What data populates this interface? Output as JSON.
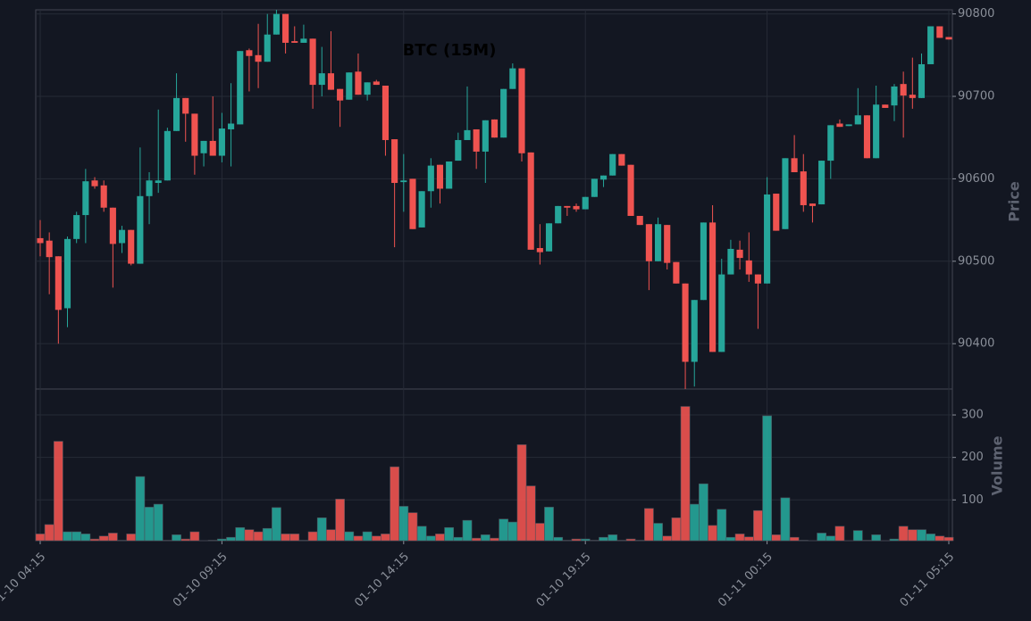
{
  "chart_data": {
    "type": "candlestick",
    "title": "BTC (15M)",
    "categories": [
      "01-10 04:15",
      null,
      null,
      null,
      null,
      null,
      null,
      null,
      null,
      null,
      null,
      null,
      null,
      null,
      null,
      null,
      null,
      null,
      null,
      null,
      "01-10 09:15",
      null,
      null,
      null,
      null,
      null,
      null,
      null,
      null,
      null,
      null,
      null,
      null,
      null,
      null,
      null,
      null,
      null,
      null,
      null,
      "01-10 14:15",
      null,
      null,
      null,
      null,
      null,
      null,
      null,
      null,
      null,
      null,
      null,
      null,
      null,
      null,
      null,
      null,
      null,
      null,
      null,
      "01-10 19:15",
      null,
      null,
      null,
      null,
      null,
      null,
      null,
      null,
      null,
      null,
      null,
      null,
      null,
      null,
      null,
      null,
      null,
      null,
      null,
      "01-11 00:15",
      null,
      null,
      null,
      null,
      null,
      null,
      null,
      null,
      null,
      null,
      null,
      null,
      null,
      null,
      null,
      null,
      null,
      null,
      null,
      "01-11 05:15"
    ],
    "open": [
      90528,
      90525,
      90506,
      90443,
      90527,
      90556,
      90598,
      90592,
      90565,
      90522,
      90538,
      90497,
      90579,
      90595,
      90598,
      90658,
      90698,
      90679,
      90631,
      90646,
      90628,
      90660,
      90666,
      90756,
      90750,
      90742,
      90775,
      90800,
      90767,
      90765,
      90770,
      90714,
      90728,
      90709,
      90696,
      90730,
      90702,
      90718,
      90713,
      90648,
      90596,
      90600,
      90541,
      90585,
      90617,
      90588,
      90622,
      90647,
      90660,
      90633,
      90672,
      90650,
      90709,
      90734,
      90632,
      90516,
      90512,
      90546,
      90567,
      90567,
      90563,
      90578,
      90599,
      90604,
      90630,
      90617,
      90555,
      90545,
      90500,
      90544,
      90499,
      90473,
      90378,
      90453,
      90547,
      90390,
      90484,
      90514,
      90501,
      90484,
      90473,
      90582,
      90539,
      90625,
      90609,
      90570,
      90569,
      90622,
      90667,
      90664,
      90666,
      90677,
      90625,
      90690,
      90689,
      90715,
      90702,
      90698,
      90739,
      90785,
      90772
    ],
    "high": [
      90550,
      90535,
      90506,
      90530,
      90560,
      90612,
      90602,
      90598,
      90565,
      90543,
      90538,
      90638,
      90608,
      90684,
      90662,
      90728,
      90698,
      90679,
      90646,
      90700,
      90680,
      90716,
      90755,
      90758,
      90788,
      90800,
      90805,
      90800,
      90785,
      90787,
      90770,
      90760,
      90779,
      90709,
      90729,
      90752,
      90717,
      90720,
      90713,
      90648,
      90630,
      90600,
      90585,
      90625,
      90617,
      90621,
      90656,
      90712,
      90660,
      90671,
      90672,
      90709,
      90740,
      90734,
      90632,
      90545,
      90546,
      90567,
      90567,
      90570,
      90578,
      90600,
      90604,
      90630,
      90630,
      90617,
      90555,
      90545,
      90553,
      90544,
      90499,
      90473,
      90453,
      90547,
      90568,
      90503,
      90526,
      90525,
      90535,
      90484,
      90602,
      90582,
      90625,
      90653,
      90630,
      90570,
      90622,
      90665,
      90672,
      90666,
      90710,
      90677,
      90713,
      90690,
      90715,
      90730,
      90747,
      90752,
      90785,
      90785,
      90772
    ],
    "low": [
      90506,
      90460,
      90400,
      90420,
      90522,
      90522,
      90588,
      90560,
      90468,
      90510,
      90495,
      90497,
      90545,
      90583,
      90598,
      90658,
      90645,
      90605,
      90615,
      90628,
      90620,
      90615,
      90666,
      90706,
      90710,
      90742,
      90775,
      90752,
      90765,
      90765,
      90685,
      90700,
      90708,
      90663,
      90696,
      90702,
      90695,
      90714,
      90628,
      90517,
      90560,
      90539,
      90541,
      90565,
      90570,
      90588,
      90622,
      90647,
      90612,
      90595,
      90650,
      90650,
      90709,
      90621,
      90514,
      90496,
      90512,
      90546,
      90555,
      90560,
      90563,
      90578,
      90590,
      90604,
      90616,
      90555,
      90544,
      90465,
      90500,
      90490,
      90473,
      90345,
      90348,
      90453,
      90390,
      90390,
      90484,
      90490,
      90475,
      90418,
      90473,
      90537,
      90539,
      90608,
      90560,
      90547,
      90569,
      90600,
      90663,
      90664,
      90666,
      90625,
      90625,
      90686,
      90670,
      90650,
      90685,
      90698,
      90739,
      90771,
      90769
    ],
    "close": [
      90522,
      90505,
      90441,
      90527,
      90556,
      90597,
      90591,
      90565,
      90521,
      90538,
      90497,
      90579,
      90598,
      90598,
      90658,
      90698,
      90679,
      90628,
      90646,
      90628,
      90661,
      90667,
      90755,
      90749,
      90742,
      90775,
      90800,
      90765,
      90765,
      90770,
      90714,
      90728,
      90708,
      90695,
      90729,
      90702,
      90717,
      90714,
      90647,
      90595,
      90598,
      90539,
      90585,
      90616,
      90588,
      90621,
      90647,
      90659,
      90633,
      90671,
      90650,
      90709,
      90734,
      90631,
      90514,
      90511,
      90546,
      90567,
      90565,
      90563,
      90578,
      90600,
      90604,
      90630,
      90616,
      90555,
      90544,
      90500,
      90545,
      90498,
      90473,
      90378,
      90453,
      90547,
      90390,
      90484,
      90515,
      90504,
      90484,
      90473,
      90581,
      90537,
      90625,
      90608,
      90568,
      90567,
      90622,
      90665,
      90663,
      90666,
      90677,
      90625,
      90690,
      90686,
      90712,
      90701,
      90698,
      90739,
      90785,
      90771,
      90769
    ],
    "volume": [
      20,
      42,
      238,
      25,
      25,
      20,
      8,
      15,
      22,
      5,
      20,
      155,
      83,
      90,
      5,
      18,
      8,
      25,
      4,
      5,
      8,
      12,
      35,
      30,
      25,
      33,
      82,
      20,
      20,
      5,
      25,
      58,
      30,
      102,
      25,
      15,
      25,
      15,
      20,
      178,
      85,
      70,
      38,
      15,
      20,
      35,
      12,
      52,
      10,
      18,
      10,
      55,
      48,
      230,
      133,
      45,
      83,
      12,
      5,
      8,
      8,
      5,
      12,
      18,
      5,
      8,
      5,
      80,
      45,
      15,
      58,
      320,
      90,
      138,
      40,
      78,
      12,
      20,
      13,
      75,
      298,
      18,
      105,
      12,
      5,
      3,
      22,
      15,
      38,
      3,
      28,
      5,
      18,
      3,
      8,
      38,
      30,
      30,
      20,
      15,
      12
    ],
    "up_color": "#26a69a",
    "down_color": "#ef5350",
    "ylim": [
      90345,
      90805
    ],
    "yticks": [
      90400,
      90500,
      90600,
      90700,
      90800
    ],
    "ylabel": "Price",
    "volume_ylim": [
      4,
      361
    ],
    "volume_yticks": [
      100,
      200,
      300
    ],
    "volume_label": "Volume",
    "grid": true
  }
}
